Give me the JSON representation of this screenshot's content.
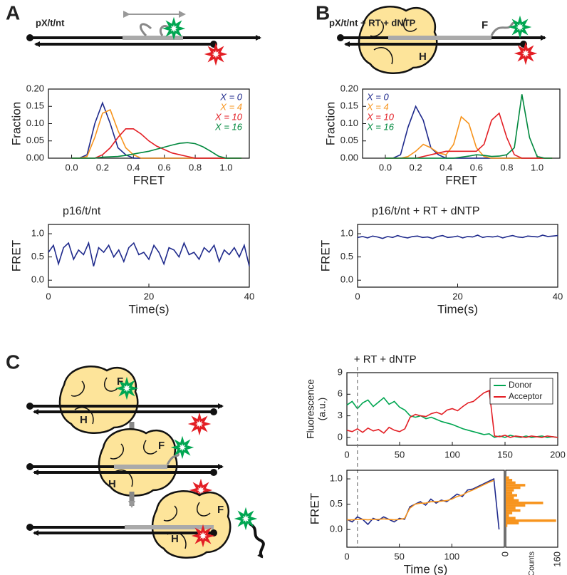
{
  "diagram": {
    "panel_labels": [
      "A",
      "B",
      "C"
    ],
    "construct_labels": [
      "pX/t/nt",
      "pX/t/nt + RT + dNTP"
    ],
    "subunit_labels": [
      "F",
      "H",
      "F",
      "H",
      "F",
      "H",
      "F",
      "H"
    ]
  },
  "chart_data": [
    {
      "type": "line",
      "xlabel": "FRET",
      "ylabel": "Fraction",
      "xlim": [
        -0.15,
        1.15
      ],
      "xticks": [
        {
          "value": 0,
          "label": "0.0"
        },
        0.2,
        0.4,
        0.6,
        0.8,
        {
          "value": 1,
          "label": "1.0"
        }
      ],
      "ylim": [
        0,
        0.2
      ],
      "yticks": [
        {
          "value": 0,
          "label": "0.00"
        },
        0.05,
        {
          "value": 0.1,
          "label": "0.10"
        },
        0.15,
        {
          "value": 0.2,
          "label": "0.20"
        }
      ],
      "legend": "upper right",
      "x": [
        0,
        0.05,
        0.1,
        0.15,
        0.2,
        0.25,
        0.3,
        0.35,
        0.4,
        0.45,
        0.5,
        0.55,
        0.6,
        0.65,
        0.7,
        0.75,
        0.8,
        0.85,
        0.9,
        0.95,
        1.0,
        1.05,
        1.1
      ],
      "series": [
        {
          "name": "X = 0",
          "color": "#1f2a8c",
          "values": [
            0,
            0,
            0.01,
            0.1,
            0.16,
            0.1,
            0.03,
            0.01,
            0,
            0,
            0,
            0,
            0,
            0,
            0,
            0,
            0,
            0,
            0,
            0,
            0,
            0,
            0
          ]
        },
        {
          "name": "X = 4",
          "color": "#f7941d",
          "values": [
            0,
            0,
            0.005,
            0.06,
            0.13,
            0.14,
            0.08,
            0.03,
            0.01,
            0,
            0,
            0,
            0,
            0,
            0,
            0,
            0,
            0,
            0,
            0,
            0,
            0,
            0
          ]
        },
        {
          "name": "X = 10",
          "color": "#e31e24",
          "values": [
            0,
            0,
            0,
            0,
            0.01,
            0.03,
            0.06,
            0.085,
            0.085,
            0.07,
            0.05,
            0.035,
            0.025,
            0.015,
            0.01,
            0.005,
            0,
            0,
            0,
            0,
            0,
            0,
            0
          ]
        },
        {
          "name": "X = 16",
          "color": "#00883d",
          "values": [
            0,
            0,
            0,
            0,
            0.003,
            0.004,
            0.005,
            0.008,
            0.012,
            0.016,
            0.02,
            0.026,
            0.032,
            0.038,
            0.043,
            0.045,
            0.042,
            0.033,
            0.02,
            0.006,
            0,
            0,
            0
          ]
        }
      ]
    },
    {
      "type": "line",
      "xlabel": "FRET",
      "ylabel": "Fraction",
      "xlim": [
        -0.15,
        1.15
      ],
      "xticks": [
        {
          "value": 0,
          "label": "0.0"
        },
        0.2,
        0.4,
        0.6,
        0.8,
        {
          "value": 1,
          "label": "1.0"
        }
      ],
      "ylim": [
        0,
        0.2
      ],
      "yticks": [
        {
          "value": 0,
          "label": "0.00"
        },
        0.05,
        {
          "value": 0.1,
          "label": "0.10"
        },
        0.15,
        {
          "value": 0.2,
          "label": "0.20"
        }
      ],
      "legend": "upper left",
      "x": [
        0,
        0.05,
        0.1,
        0.15,
        0.2,
        0.25,
        0.3,
        0.35,
        0.4,
        0.45,
        0.5,
        0.55,
        0.6,
        0.65,
        0.7,
        0.75,
        0.8,
        0.85,
        0.9,
        0.95,
        1.0,
        1.05,
        1.1
      ],
      "series": [
        {
          "name": "X = 0",
          "color": "#1f2a8c",
          "values": [
            0,
            0,
            0.01,
            0.09,
            0.15,
            0.11,
            0.03,
            0.01,
            0,
            0,
            0,
            0,
            0,
            0,
            0,
            0,
            0,
            0,
            0,
            0,
            0,
            0,
            0
          ]
        },
        {
          "name": "X = 4",
          "color": "#f7941d",
          "values": [
            0,
            0,
            0,
            0.005,
            0.02,
            0.04,
            0.03,
            0.015,
            0.01,
            0.04,
            0.12,
            0.1,
            0.03,
            0.005,
            0,
            0,
            0,
            0,
            0,
            0,
            0,
            0,
            0
          ]
        },
        {
          "name": "X = 10",
          "color": "#e31e24",
          "values": [
            0,
            0,
            0,
            0,
            0,
            0.005,
            0.01,
            0.015,
            0.02,
            0.02,
            0.02,
            0.02,
            0.02,
            0.04,
            0.11,
            0.13,
            0.06,
            0.01,
            0,
            0,
            0,
            0,
            0
          ]
        },
        {
          "name": "X = 16",
          "color": "#00883d",
          "values": [
            0,
            0,
            0,
            0,
            0,
            0,
            0,
            0,
            0,
            0,
            0.003,
            0.006,
            0.01,
            0.008,
            0.005,
            0.006,
            0.01,
            0.03,
            0.185,
            0.06,
            0.005,
            0,
            0
          ]
        }
      ]
    },
    {
      "type": "line",
      "title": "p16/t/nt",
      "xlabel": "Time(s)",
      "ylabel": "FRET",
      "xlim": [
        0,
        40
      ],
      "xticks": [
        0,
        20,
        40
      ],
      "ylim": [
        -0.15,
        1.2
      ],
      "yticks": [
        {
          "value": 0,
          "label": "0.0"
        },
        0.5,
        {
          "value": 1,
          "label": "1.0"
        }
      ],
      "color": "#1f2a8c",
      "x": [
        0,
        1,
        2,
        3,
        4,
        5,
        6,
        7,
        8,
        9,
        10,
        11,
        12,
        13,
        14,
        15,
        16,
        17,
        18,
        19,
        20,
        21,
        22,
        23,
        24,
        25,
        26,
        27,
        28,
        29,
        30,
        31,
        32,
        33,
        34,
        35,
        36,
        37,
        38,
        39,
        40
      ],
      "values": [
        0.6,
        0.75,
        0.35,
        0.7,
        0.8,
        0.45,
        0.65,
        0.55,
        0.8,
        0.3,
        0.7,
        0.6,
        0.75,
        0.5,
        0.65,
        0.4,
        0.7,
        0.8,
        0.55,
        0.6,
        0.45,
        0.75,
        0.6,
        0.35,
        0.7,
        0.65,
        0.5,
        0.8,
        0.55,
        0.6,
        0.45,
        0.7,
        0.6,
        0.75,
        0.4,
        0.65,
        0.55,
        0.7,
        0.5,
        0.75,
        0.3
      ]
    },
    {
      "type": "line",
      "title": "p16/t/nt + RT + dNTP",
      "xlabel": "Time(s)",
      "ylabel": "FRET",
      "xlim": [
        0,
        40
      ],
      "xticks": [
        0,
        20,
        40
      ],
      "ylim": [
        -0.15,
        1.2
      ],
      "yticks": [
        {
          "value": 0,
          "label": "0.0"
        },
        0.5,
        {
          "value": 1,
          "label": "1.0"
        }
      ],
      "color": "#1f2a8c",
      "x": [
        0,
        1,
        2,
        3,
        4,
        5,
        6,
        7,
        8,
        9,
        10,
        11,
        12,
        13,
        14,
        15,
        16,
        17,
        18,
        19,
        20,
        21,
        22,
        23,
        24,
        25,
        26,
        27,
        28,
        29,
        30,
        31,
        32,
        33,
        34,
        35,
        36,
        37,
        38,
        39,
        40
      ],
      "values": [
        0.92,
        0.94,
        0.91,
        0.95,
        0.93,
        0.9,
        0.94,
        0.92,
        0.96,
        0.93,
        0.91,
        0.94,
        0.95,
        0.92,
        0.93,
        0.9,
        0.94,
        0.96,
        0.92,
        0.93,
        0.95,
        0.91,
        0.94,
        0.93,
        0.97,
        0.92,
        0.94,
        0.93,
        0.95,
        0.91,
        0.94,
        0.96,
        0.93,
        0.92,
        0.95,
        0.94,
        0.93,
        0.97,
        0.94,
        0.95,
        0.96
      ]
    },
    {
      "type": "line",
      "ylabel": [
        "Fluorescence",
        "(a.u.)"
      ],
      "xlim": [
        0,
        200
      ],
      "xticks": [
        0,
        50,
        100,
        150,
        200
      ],
      "ylim": [
        -1.1,
        9
      ],
      "yticks": [
        0,
        3,
        6,
        9
      ],
      "legend": "upper right",
      "annotation": {
        "text": "+ RT + dNTP",
        "x": 10
      },
      "x": [
        0,
        5,
        10,
        15,
        20,
        25,
        30,
        35,
        40,
        45,
        50,
        55,
        60,
        65,
        70,
        75,
        80,
        85,
        90,
        95,
        100,
        105,
        110,
        115,
        120,
        125,
        130,
        135,
        140,
        145,
        150,
        155,
        160,
        165,
        170,
        175,
        180,
        185,
        190,
        195,
        200
      ],
      "series": [
        {
          "name": "Donor",
          "color": "#00a651",
          "values": [
            4.5,
            5,
            4,
            4.8,
            5.2,
            4.3,
            4.9,
            5.5,
            4.6,
            5,
            4.2,
            3.8,
            3,
            2.8,
            3,
            2.6,
            2.8,
            2.5,
            2.2,
            2,
            1.8,
            1.5,
            1.2,
            1,
            0.8,
            0.6,
            0.4,
            0.5,
            0,
            0.2,
            0,
            0.3,
            0.1,
            0,
            0.2,
            0,
            0.1,
            0.2,
            0,
            0.1,
            0
          ]
        },
        {
          "name": "Acceptor",
          "color": "#e31e24",
          "values": [
            1,
            0.8,
            1.2,
            0.7,
            1.3,
            0.9,
            1.1,
            0.6,
            1.4,
            1,
            0.8,
            1.2,
            2.8,
            3.2,
            3,
            2.9,
            3.3,
            3.5,
            3.2,
            3.8,
            4,
            3.7,
            4.3,
            4.8,
            5,
            5.6,
            6.2,
            6.5,
            0.2,
            0.1,
            0.3,
            0,
            0.2,
            0.1,
            0,
            0.2,
            0.1,
            0,
            0.2,
            0.1,
            0
          ]
        }
      ]
    },
    {
      "type": "line",
      "xlabel": "Time (s)",
      "ylabel": "FRET",
      "xlim": [
        0,
        150
      ],
      "xticks": [
        0,
        50,
        100
      ],
      "ylim": [
        -0.35,
        1.17
      ],
      "yticks": [
        {
          "value": 0,
          "label": "0.0"
        },
        0.5,
        {
          "value": 1,
          "label": "1.0"
        }
      ],
      "x": [
        0,
        5,
        10,
        15,
        20,
        25,
        30,
        35,
        40,
        45,
        50,
        55,
        60,
        65,
        70,
        75,
        80,
        85,
        90,
        95,
        100,
        105,
        110,
        115,
        120,
        125,
        130,
        135,
        140,
        145
      ],
      "series": [
        {
          "color": "#1f2a8c",
          "values": [
            0.2,
            0.15,
            0.25,
            0.2,
            0.1,
            0.22,
            0.18,
            0.25,
            0.2,
            0.15,
            0.22,
            0.2,
            0.45,
            0.5,
            0.55,
            0.48,
            0.6,
            0.52,
            0.58,
            0.55,
            0.62,
            0.7,
            0.65,
            0.78,
            0.8,
            0.85,
            0.9,
            0.95,
            1.0,
            0
          ]
        },
        {
          "color": "#f7941d",
          "values": [
            0.19,
            0.19,
            0.2,
            0.2,
            0.19,
            0.2,
            0.2,
            0.21,
            0.2,
            0.19,
            0.2,
            0.22,
            0.42,
            0.5,
            0.52,
            0.52,
            0.55,
            0.55,
            0.56,
            0.57,
            0.6,
            0.65,
            0.68,
            0.74,
            0.78,
            0.83,
            0.88,
            0.93,
            0.97,
            null
          ]
        }
      ]
    },
    {
      "type": "histogram",
      "orientation": "horizontal",
      "xlabel": "Counts",
      "xlim": [
        0,
        160
      ],
      "xticks": [
        0,
        160
      ],
      "ylim": [
        -0.35,
        1.17
      ],
      "color": "#f7941d",
      "bins": [
        0,
        0.05,
        0.1,
        0.15,
        0.2,
        0.25,
        0.3,
        0.35,
        0.4,
        0.45,
        0.5,
        0.55,
        0.6,
        0.65,
        0.7,
        0.75,
        0.8,
        0.85,
        0.9,
        0.95,
        1.0,
        1.05,
        1.1
      ],
      "values": [
        0,
        5,
        40,
        155,
        30,
        10,
        20,
        45,
        30,
        60,
        115,
        40,
        25,
        35,
        20,
        25,
        45,
        60,
        30,
        20,
        10,
        0
      ]
    }
  ]
}
